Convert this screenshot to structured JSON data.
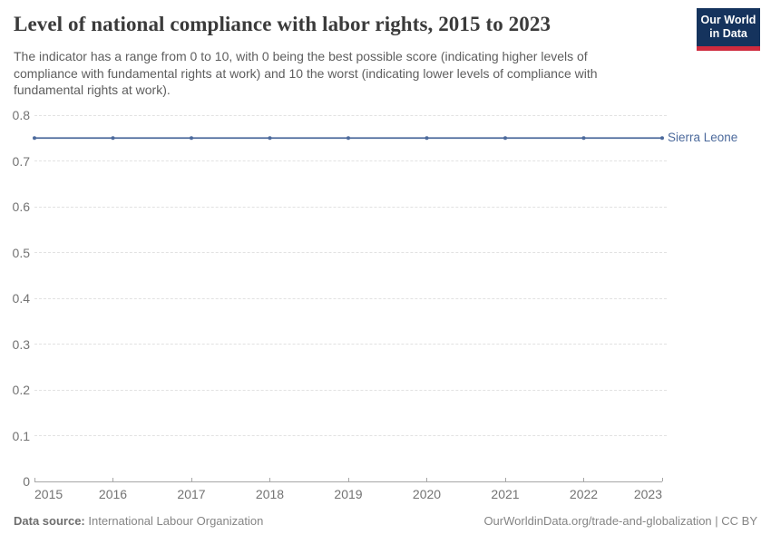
{
  "header": {
    "title": "Level of national compliance with labor rights, 2015 to 2023",
    "subtitle": "The indicator has a range from 0 to 10, with 0 being the best possible score (indicating higher levels of compliance with fundamental rights at work) and 10 the worst (indicating lower levels of compliance with fundamental rights at work).",
    "logo": {
      "line1": "Our World",
      "line2": "in Data"
    }
  },
  "chart_data": {
    "type": "line",
    "title": "Level of national compliance with labor rights, 2015 to 2023",
    "x": [
      2015,
      2016,
      2017,
      2018,
      2019,
      2020,
      2021,
      2022,
      2023
    ],
    "series": [
      {
        "name": "Sierra Leone",
        "color": "#4C6A9C",
        "values": [
          0.75,
          0.75,
          0.75,
          0.75,
          0.75,
          0.75,
          0.75,
          0.75,
          0.75
        ]
      }
    ],
    "xlabel": "",
    "ylabel": "",
    "ylim": [
      0,
      0.8
    ],
    "yticks": [
      0,
      0.1,
      0.2,
      0.3,
      0.4,
      0.5,
      0.6,
      0.7,
      0.8
    ],
    "grid": "horizontal-dashed",
    "legend": "inline-end-label"
  },
  "footer": {
    "datasource_label": "Data source:",
    "datasource_value": "International Labour Organization",
    "attribution": "OurWorldinData.org/trade-and-globalization | CC BY"
  },
  "colors": {
    "accent_navy": "#15335d",
    "logo_red": "#cf2b3e",
    "series_blue": "#4C6A9C",
    "grid": "#e2e2e2",
    "axis": "#a6a6a6",
    "title_text": "#3a3a3a",
    "subtitle_text": "#5e5e5e",
    "tick_text": "#737373",
    "footer_text": "#858585"
  }
}
